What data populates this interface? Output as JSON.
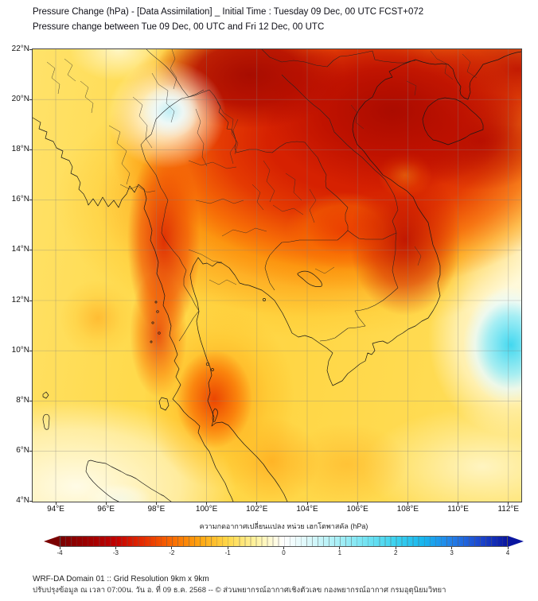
{
  "header": {
    "title_line1": "Pressure Change (hPa) - [Data Assimilation] _ Initial Time : Tuesday 09 Dec, 00 UTC FCST+072",
    "title_line2": "Pressure change between Tue 09 Dec, 00 UTC and Fri 12 Dec, 00 UTC"
  },
  "map": {
    "y_ticks": [
      "22°N",
      "20°N",
      "18°N",
      "16°N",
      "14°N",
      "12°N",
      "10°N",
      "8°N",
      "6°N",
      "4°N"
    ],
    "x_ticks": [
      "94°E",
      "96°E",
      "98°E",
      "100°E",
      "102°E",
      "104°E",
      "106°E",
      "108°E",
      "110°E",
      "112°E"
    ]
  },
  "colorbar": {
    "label": "ความกดอากาศเปลี่ยนแปลง หน่วย เฮกโตพาสคัล (hPa)",
    "ticks": [
      "-4",
      "-3",
      "-2",
      "-1",
      "0",
      "1",
      "2",
      "3",
      "4"
    ],
    "stops": [
      "#7A0000",
      "#9E0000",
      "#C40000",
      "#E62E00",
      "#F96A00",
      "#FFA510",
      "#FFD84A",
      "#FFF3A0",
      "#FFFFFF",
      "#D6F7FA",
      "#A5EFF7",
      "#70E2F2",
      "#3CD2EF",
      "#18B5EE",
      "#2380E8",
      "#1C48D0",
      "#0A16A0"
    ],
    "arrow_left_color": "#7A0000",
    "arrow_right_color": "#0A16A0"
  },
  "footer": {
    "line1": "WRF-DA Domain 01 :: Grid Resolution 9km x 9km",
    "line2": "ปรับปรุงข้อมูล ณ เวลา 07:00น. วัน อ. ที่ 09 ธ.ค. 2568 -- © ส่วนพยากรณ์อากาศเชิงตัวเลข กองพยากรณ์อากาศ กรมอุตุนิยมวิทยา"
  },
  "chart_data": {
    "type": "heatmap",
    "title": "Pressure Change (hPa) - [Data Assimilation] _ Initial Time : Tuesday 09 Dec, 00 UTC FCST+072",
    "subtitle": "Pressure change between Tue 09 Dec, 00 UTC and Fri 12 Dec, 00 UTC",
    "projection": "lat/lon map of Southeast Asia (Thailand, Myanmar, Indochina, Gulf of Tonkin, Hainan)",
    "lon_range_deg_e": [
      93.1,
      112.5
    ],
    "lat_range_deg_n": [
      4,
      22
    ],
    "x_tick_values_deg_e": [
      94,
      96,
      98,
      100,
      102,
      104,
      106,
      108,
      110,
      112
    ],
    "y_tick_values_deg_n": [
      22,
      20,
      18,
      16,
      14,
      12,
      10,
      8,
      6,
      4
    ],
    "grid": "light gray graticule every 2 degrees",
    "colorbar": {
      "label_thai": "ความกดอากาศเปลี่ยนแปลง หน่วย เฮกโตพาสคัล (hPa)",
      "label_meaning": "Air-pressure change, unit hectopascal (hPa)",
      "min": -4,
      "max": 4,
      "tick_values": [
        -4,
        -3,
        -2,
        -1,
        0,
        1,
        2,
        3,
        4
      ],
      "orientation": "horizontal, arrow-extended both ends",
      "negative_side": "red (pressure falling)",
      "positive_side": "blue (pressure rising)"
    },
    "grid_estimate_hpa": {
      "lons_deg_e": [
        94,
        96,
        98,
        100,
        102,
        104,
        106,
        108,
        110,
        112
      ],
      "lats_deg_n": [
        22,
        20,
        18,
        16,
        14,
        12,
        10,
        8,
        6,
        4
      ],
      "values_rows_by_lat": [
        [
          -1.2,
          -0.7,
          -1.6,
          -3.2,
          -3.6,
          -3.4,
          -3.7,
          -3.5,
          -3.4,
          -3.2
        ],
        [
          -1.0,
          0.2,
          -1.2,
          -2.7,
          -3.4,
          -3.2,
          -3.6,
          -3.3,
          -3.1,
          -3.0
        ],
        [
          -1.0,
          -0.9,
          -1.4,
          -2.2,
          -2.6,
          -3.0,
          -3.3,
          -2.7,
          -2.5,
          -1.5
        ],
        [
          -0.9,
          -1.0,
          -1.8,
          -2.2,
          -2.4,
          -2.6,
          -3.0,
          -2.2,
          -0.9,
          -0.4
        ],
        [
          -0.9,
          -1.1,
          -1.7,
          -2.1,
          -2.2,
          -2.4,
          -2.8,
          -1.6,
          -0.6,
          -0.2
        ],
        [
          -1.0,
          -1.2,
          -1.3,
          -1.5,
          -1.6,
          -1.6,
          -1.4,
          -0.9,
          -0.2,
          0.9
        ],
        [
          -0.9,
          -1.1,
          -1.2,
          -1.4,
          -1.4,
          -1.3,
          -1.2,
          -0.8,
          -0.1,
          1.3
        ],
        [
          -0.8,
          -1.0,
          -1.3,
          -2.1,
          -1.5,
          -1.3,
          -1.1,
          -0.9,
          -0.4,
          0.3
        ],
        [
          -0.6,
          -0.8,
          -1.0,
          -1.5,
          -1.5,
          -1.4,
          -1.0,
          -0.8,
          -0.5,
          -0.3
        ],
        [
          -0.3,
          -0.2,
          -0.6,
          -1.1,
          -1.3,
          -1.5,
          -1.0,
          -0.8,
          -0.6,
          -0.4
        ]
      ]
    },
    "features": [
      {
        "region": "Northern Vietnam / Laos / Gulf of Tonkin / Hainan (100-112E, 16-22N)",
        "value_hpa": -3.5,
        "color": "dark red"
      },
      {
        "region": "Central and NE Thailand / Cambodia band",
        "value_hpa": -2.5,
        "color": "red-orange"
      },
      {
        "region": "Red tongue along western Thailand near 99E, 12-17N",
        "value_hpa": -2.8,
        "color": "red"
      },
      {
        "region": "Peninsular Thailand blob near 100E, 8N",
        "value_hpa": -2.2,
        "color": "orange-red"
      },
      {
        "region": "Small spot near 97E, 19.5N (white/pale-cyan)",
        "value_hpa": 0.3,
        "color": "pale cyan"
      },
      {
        "region": "Offshore patch at right edge 110.5-112.5E, 9-12.5N",
        "value_hpa": 1.3,
        "color": "cyan"
      },
      {
        "region": "Bottom-left corner near Aceh/Sumatra",
        "value_hpa": -0.2,
        "color": "near white"
      },
      {
        "region": "Remaining Bay of Bengal / Gulf of Thailand background",
        "value_hpa": -1.0,
        "color": "yellow"
      }
    ]
  }
}
